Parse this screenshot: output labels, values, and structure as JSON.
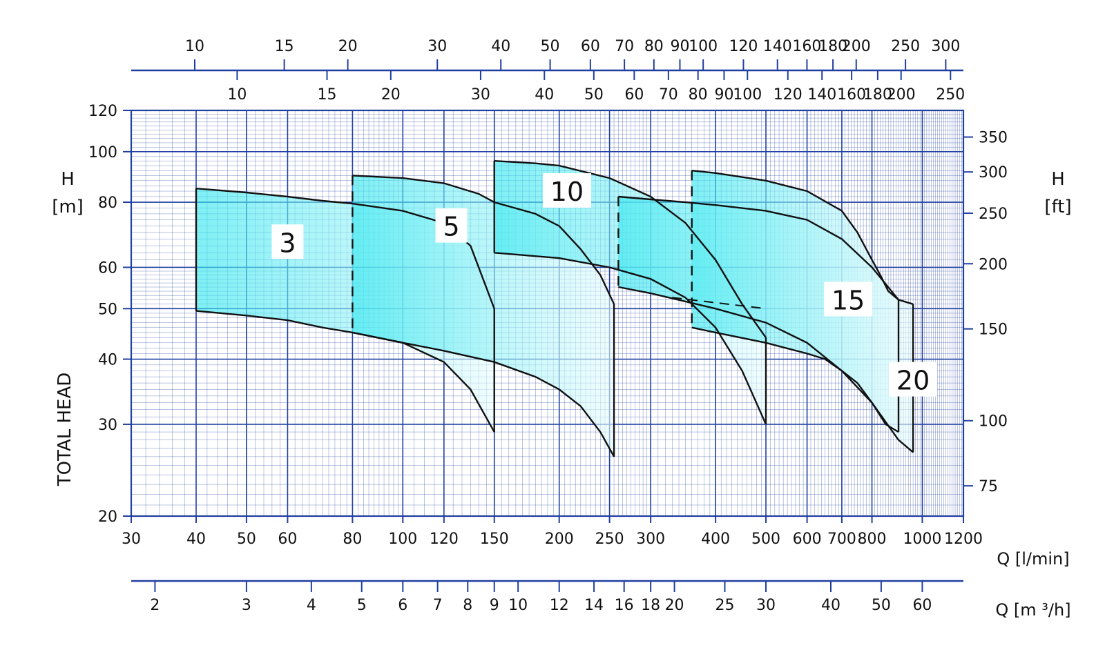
{
  "chart_data": {
    "type": "line",
    "x_scale": "log",
    "y_scale": "log",
    "grid": true,
    "xlim": [
      30,
      1200
    ],
    "ylim": [
      20,
      120
    ],
    "xlabel": "Q [l/min]",
    "xlabel_m3h": "Q [m ³/h]",
    "ylabel_left_symbol": "H",
    "ylabel_left_unit": "[m]",
    "ylabel_total": "TOTAL HEAD",
    "ylabel_right_symbol": "H",
    "ylabel_right_unit": "[ft]",
    "x_ticks_lpm": [
      "30",
      "40",
      "50",
      "60",
      "80",
      "100",
      "120",
      "150",
      "200",
      "250",
      "300",
      "400",
      "500",
      "600",
      "700",
      "800",
      "1000",
      "1200"
    ],
    "x_ticks_m3h": [
      "2",
      "3",
      "4",
      "5",
      "6",
      "7",
      "8",
      "9",
      "10",
      "12",
      "14",
      "16",
      "18",
      "20",
      "25",
      "30",
      "40",
      "50",
      "60"
    ],
    "y_ticks_m": [
      "20",
      "30",
      "40",
      "50",
      "60",
      "80",
      "100",
      "120"
    ],
    "y_ticks_ft": [
      "75",
      "100",
      "150",
      "200",
      "250",
      "300",
      "350"
    ],
    "top_axis_1": [
      "10",
      "15",
      "20",
      "30",
      "40",
      "50",
      "60",
      "70",
      "80",
      "90",
      "100",
      "120",
      "140",
      "160",
      "180",
      "200",
      "250",
      "300"
    ],
    "top_axis_2": [
      "10",
      "15",
      "20",
      "30",
      "40",
      "50",
      "60",
      "70",
      "80",
      "90",
      "100",
      "120",
      "140",
      "160",
      "180",
      "200",
      "250"
    ],
    "regions": [
      {
        "label": "3",
        "label_at": [
          60,
          67
        ],
        "upper": [
          [
            40,
            85
          ],
          [
            50,
            83.5
          ],
          [
            60,
            82
          ],
          [
            70,
            80.5
          ],
          [
            80,
            79.5
          ],
          [
            100,
            77
          ],
          [
            120,
            73
          ],
          [
            135,
            66
          ],
          [
            150,
            50
          ]
        ],
        "lower": [
          [
            40,
            49.5
          ],
          [
            50,
            48.5
          ],
          [
            60,
            47.5
          ],
          [
            70,
            46
          ],
          [
            80,
            45
          ],
          [
            100,
            43
          ],
          [
            120,
            39.5
          ],
          [
            135,
            35
          ],
          [
            150,
            29
          ]
        ],
        "left_q": 40,
        "right_q": 150
      },
      {
        "label": "5",
        "label_at": [
          124,
          72
        ],
        "upper": [
          [
            80,
            90
          ],
          [
            100,
            89
          ],
          [
            120,
            87
          ],
          [
            140,
            83
          ],
          [
            150,
            80
          ],
          [
            180,
            76
          ],
          [
            200,
            72
          ],
          [
            220,
            65
          ],
          [
            240,
            58
          ],
          [
            255,
            51
          ]
        ],
        "lower": [
          [
            80,
            45
          ],
          [
            100,
            43
          ],
          [
            120,
            41.5
          ],
          [
            150,
            39.5
          ],
          [
            180,
            37
          ],
          [
            200,
            35
          ],
          [
            220,
            32.5
          ],
          [
            240,
            29
          ],
          [
            255,
            26
          ]
        ],
        "left_q": 80,
        "right_q": 255
      },
      {
        "label": "10",
        "label_at": [
          207,
          84
        ],
        "upper": [
          [
            150,
            96
          ],
          [
            180,
            95
          ],
          [
            200,
            94
          ],
          [
            250,
            89
          ],
          [
            300,
            82
          ],
          [
            350,
            73
          ],
          [
            400,
            62
          ],
          [
            450,
            51
          ],
          [
            500,
            44
          ]
        ],
        "lower": [
          [
            150,
            64
          ],
          [
            200,
            62.5
          ],
          [
            250,
            60
          ],
          [
            300,
            57
          ],
          [
            350,
            52.5
          ],
          [
            400,
            46
          ],
          [
            450,
            38
          ],
          [
            500,
            30
          ]
        ],
        "left_q": 150,
        "right_q": 500
      },
      {
        "label": "15",
        "label_at": [
          720,
          52
        ],
        "upper": [
          [
            360,
            92
          ],
          [
            400,
            91
          ],
          [
            500,
            88
          ],
          [
            600,
            84
          ],
          [
            700,
            77
          ],
          [
            750,
            70
          ],
          [
            800,
            62
          ],
          [
            830,
            58
          ],
          [
            860,
            54
          ],
          [
            900,
            52
          ]
        ],
        "lower": [
          [
            360,
            46
          ],
          [
            400,
            45
          ],
          [
            500,
            43
          ],
          [
            600,
            41
          ],
          [
            650,
            40
          ],
          [
            700,
            38
          ],
          [
            750,
            36
          ],
          [
            800,
            33
          ],
          [
            850,
            30
          ],
          [
            900,
            29
          ]
        ],
        "left_q": 360,
        "right_q": 900
      },
      {
        "label": "20",
        "label_at": [
          960,
          36.5
        ],
        "upper": [
          [
            260,
            82
          ],
          [
            300,
            81
          ],
          [
            350,
            80
          ],
          [
            400,
            79
          ],
          [
            500,
            77
          ],
          [
            600,
            74
          ],
          [
            700,
            68
          ],
          [
            800,
            60
          ],
          [
            900,
            52
          ],
          [
            960,
            51
          ]
        ],
        "lower": [
          [
            260,
            55
          ],
          [
            300,
            53.5
          ],
          [
            400,
            50
          ],
          [
            500,
            47
          ],
          [
            600,
            43
          ],
          [
            700,
            38
          ],
          [
            800,
            33
          ],
          [
            900,
            28
          ],
          [
            960,
            26.5
          ]
        ],
        "left_q": 260,
        "right_q": 960
      }
    ]
  },
  "colors": {
    "grid": "#1f3fa0",
    "axis": "#1f3fa0",
    "fill_strong": "#30e6ee",
    "fill_light": "#e9fcfd",
    "curve": "#111111"
  }
}
